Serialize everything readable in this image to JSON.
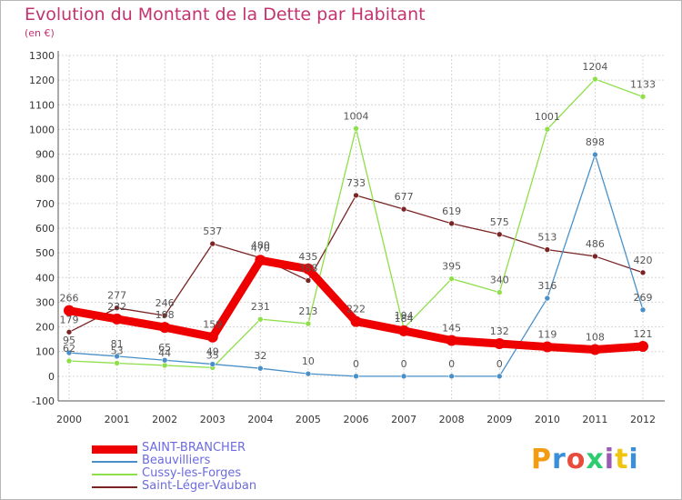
{
  "title": "Evolution du Montant de la Dette par Habitant",
  "subtitle": "(en €)",
  "logo": {
    "text": "Proxiti",
    "colors": [
      "#f39c12",
      "#3b8fd8",
      "#e74c3c",
      "#2ecc71",
      "#9b59b6",
      "#f1c40f",
      "#3b8fd8"
    ]
  },
  "chart_data": {
    "type": "line",
    "title": "Evolution du Montant de la Dette par Habitant",
    "ylabel": "(en €)",
    "xlabel": "",
    "x": [
      "2000",
      "2001",
      "2002",
      "2003",
      "2004",
      "2005",
      "2006",
      "2007",
      "2008",
      "2009",
      "2010",
      "2011",
      "2012"
    ],
    "ylim": [
      -100,
      1300
    ],
    "yticks": [
      -100,
      0,
      100,
      200,
      300,
      400,
      500,
      600,
      700,
      800,
      900,
      1000,
      1100,
      1200,
      1300
    ],
    "grid": true,
    "legend": "bottom-left",
    "series": [
      {
        "name": "SAINT-BRANCHER",
        "color": "#ee0000",
        "values": [
          266,
          232,
          198,
          159,
          470,
          435,
          222,
          184,
          145,
          132,
          119,
          108,
          121
        ]
      },
      {
        "name": "Beauvilliers",
        "color": "#4a90c8",
        "values": [
          95,
          81,
          65,
          49,
          32,
          10,
          0,
          0,
          0,
          0,
          316,
          898,
          269
        ]
      },
      {
        "name": "Cussy-les-Forges",
        "color": "#8edf4a",
        "values": [
          62,
          53,
          44,
          35,
          231,
          213,
          1004,
          194,
          395,
          340,
          1001,
          1204,
          1133
        ]
      },
      {
        "name": "Saint-Léger-Vauban",
        "color": "#7a2424",
        "values": [
          179,
          277,
          246,
          537,
          480,
          388,
          733,
          677,
          619,
          575,
          513,
          486,
          420
        ]
      }
    ]
  }
}
